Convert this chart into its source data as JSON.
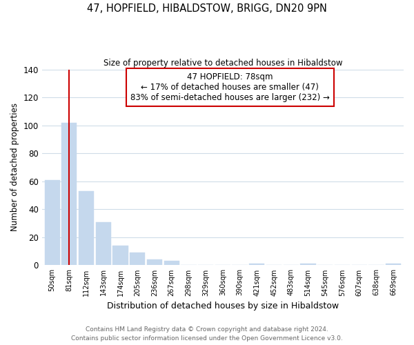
{
  "title": "47, HOPFIELD, HIBALDSTOW, BRIGG, DN20 9PN",
  "subtitle": "Size of property relative to detached houses in Hibaldstow",
  "xlabel": "Distribution of detached houses by size in Hibaldstow",
  "ylabel": "Number of detached properties",
  "bar_color": "#c5d8ed",
  "annotation_line_color": "#cc0000",
  "annotation_box_edge_color": "#cc0000",
  "annotation_line1": "47 HOPFIELD: 78sqm",
  "annotation_line2": "← 17% of detached houses are smaller (47)",
  "annotation_line3": "83% of semi-detached houses are larger (232) →",
  "x_labels": [
    "50sqm",
    "81sqm",
    "112sqm",
    "143sqm",
    "174sqm",
    "205sqm",
    "236sqm",
    "267sqm",
    "298sqm",
    "329sqm",
    "360sqm",
    "390sqm",
    "421sqm",
    "452sqm",
    "483sqm",
    "514sqm",
    "545sqm",
    "576sqm",
    "607sqm",
    "638sqm",
    "669sqm"
  ],
  "bar_values": [
    61,
    102,
    53,
    31,
    14,
    9,
    4,
    3,
    0,
    0,
    0,
    0,
    1,
    0,
    0,
    1,
    0,
    0,
    0,
    0,
    1
  ],
  "ylim": [
    0,
    140
  ],
  "yticks": [
    0,
    20,
    40,
    60,
    80,
    100,
    120,
    140
  ],
  "property_line_x": 1.0,
  "footer_text": "Contains HM Land Registry data © Crown copyright and database right 2024.\nContains public sector information licensed under the Open Government Licence v3.0.",
  "background_color": "#ffffff",
  "grid_color": "#cfdce8",
  "figsize": [
    6.0,
    5.0
  ],
  "dpi": 100
}
